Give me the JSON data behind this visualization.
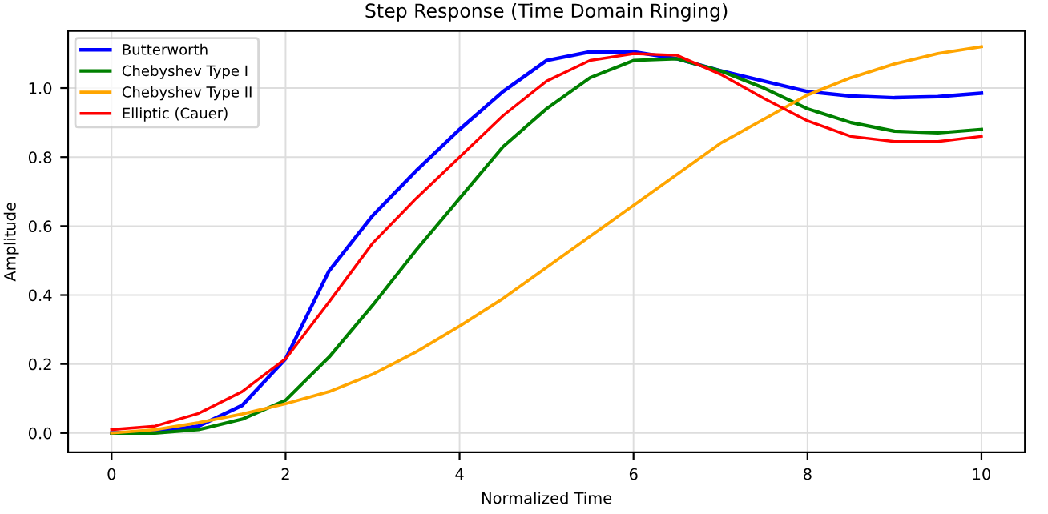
{
  "chart_data": {
    "type": "line",
    "title": "Step Response (Time Domain Ringing)",
    "xlabel": "Normalized Time",
    "ylabel": "Amplitude",
    "x": [
      0,
      0.5,
      1,
      1.5,
      2,
      2.5,
      3,
      3.5,
      4,
      4.5,
      5,
      5.5,
      6,
      6.5,
      7,
      7.5,
      8,
      8.5,
      9,
      9.5,
      10
    ],
    "series": [
      {
        "name": "Butterworth",
        "color": "#0000ff",
        "values": [
          0.0,
          0.003,
          0.02,
          0.08,
          0.215,
          0.47,
          0.63,
          0.76,
          0.88,
          0.99,
          1.08,
          1.105,
          1.105,
          1.085,
          1.05,
          1.02,
          0.99,
          0.977,
          0.972,
          0.975,
          0.985
        ]
      },
      {
        "name": "Chebyshev Type I",
        "color": "#008000",
        "values": [
          0.0,
          0.0,
          0.01,
          0.04,
          0.095,
          0.22,
          0.37,
          0.53,
          0.68,
          0.83,
          0.94,
          1.03,
          1.08,
          1.085,
          1.05,
          1.0,
          0.94,
          0.9,
          0.875,
          0.87,
          0.88
        ]
      },
      {
        "name": "Chebyshev Type II",
        "color": "#ffa500",
        "values": [
          0.0,
          0.01,
          0.03,
          0.055,
          0.085,
          0.12,
          0.17,
          0.235,
          0.31,
          0.39,
          0.48,
          0.57,
          0.66,
          0.75,
          0.84,
          0.91,
          0.98,
          1.03,
          1.07,
          1.1,
          1.12
        ]
      },
      {
        "name": "Elliptic (Cauer)",
        "color": "#ff0000",
        "values": [
          0.01,
          0.02,
          0.057,
          0.12,
          0.215,
          0.38,
          0.55,
          0.68,
          0.8,
          0.92,
          1.02,
          1.08,
          1.1,
          1.095,
          1.04,
          0.97,
          0.905,
          0.86,
          0.845,
          0.845,
          0.86
        ]
      }
    ],
    "xlim": [
      -0.5,
      10.5
    ],
    "ylim": [
      -0.056,
      1.166
    ],
    "xticks": [
      0,
      2,
      4,
      6,
      8,
      10
    ],
    "yticks": [
      {
        "value": 0,
        "label": "0.0"
      },
      {
        "value": 0.2,
        "label": "0.2"
      },
      {
        "value": 0.4,
        "label": "0.4"
      },
      {
        "value": 0.6,
        "label": "0.6"
      },
      {
        "value": 0.8,
        "label": "0.8"
      },
      {
        "value": 1,
        "label": "1.0"
      }
    ],
    "grid": true,
    "legend": "top left",
    "marker": "none",
    "line_style": "solid"
  }
}
